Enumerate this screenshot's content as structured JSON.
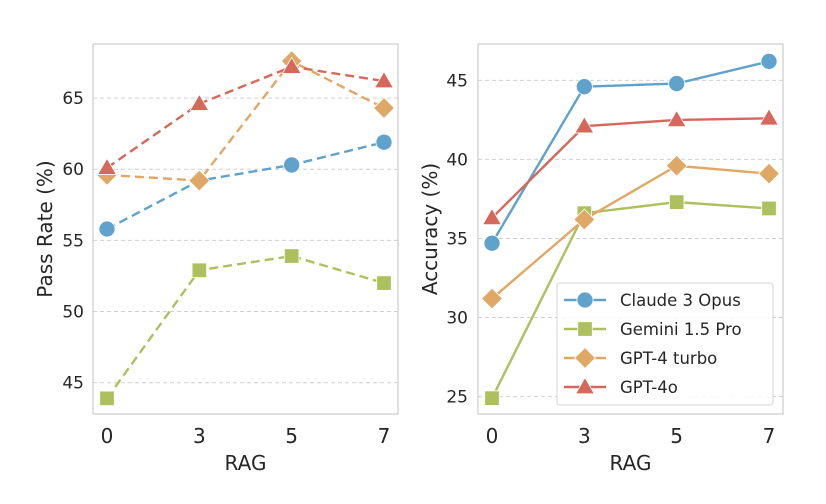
{
  "chart_data": [
    {
      "type": "line",
      "title": "",
      "xlabel": "RAG",
      "ylabel": "Pass Rate (%)",
      "categories": [
        "0",
        "3",
        "5",
        "7"
      ],
      "ylim": [
        42.8,
        68.8
      ],
      "yticks": [
        45,
        50,
        55,
        60,
        65
      ],
      "grid": "y-dashed",
      "line_style": "dashed",
      "legend": "none",
      "series": [
        {
          "name": "Claude 3 Opus",
          "marker": "circle",
          "color": "#5fa2cb",
          "values": [
            55.8,
            59.2,
            60.3,
            61.9
          ]
        },
        {
          "name": "Gemini 1.5 Pro",
          "marker": "square",
          "color": "#adc05d",
          "values": [
            43.9,
            52.9,
            53.9,
            52.0
          ]
        },
        {
          "name": "GPT-4 turbo",
          "marker": "diamond",
          "color": "#e0a866",
          "values": [
            59.6,
            59.2,
            67.6,
            64.3
          ]
        },
        {
          "name": "GPT-4o",
          "marker": "triangle",
          "color": "#d5685a",
          "values": [
            60.1,
            64.6,
            67.2,
            66.2
          ]
        }
      ]
    },
    {
      "type": "line",
      "title": "",
      "xlabel": "RAG",
      "ylabel": "Accuracy (%)",
      "categories": [
        "0",
        "3",
        "5",
        "7"
      ],
      "ylim": [
        23.9,
        47.3
      ],
      "yticks": [
        25,
        30,
        35,
        40,
        45
      ],
      "grid": "y-dashed",
      "line_style": "solid",
      "legend": "lower-right",
      "series": [
        {
          "name": "Claude 3 Opus",
          "marker": "circle",
          "color": "#5fa2cb",
          "values": [
            34.7,
            44.6,
            44.8,
            46.2
          ]
        },
        {
          "name": "Gemini 1.5 Pro",
          "marker": "square",
          "color": "#adc05d",
          "values": [
            24.9,
            36.6,
            37.3,
            36.9
          ]
        },
        {
          "name": "GPT-4 turbo",
          "marker": "diamond",
          "color": "#e0a866",
          "values": [
            31.2,
            36.2,
            39.6,
            39.1
          ]
        },
        {
          "name": "GPT-4o",
          "marker": "triangle",
          "color": "#d5685a",
          "values": [
            36.3,
            42.1,
            42.5,
            42.6
          ]
        }
      ]
    }
  ]
}
